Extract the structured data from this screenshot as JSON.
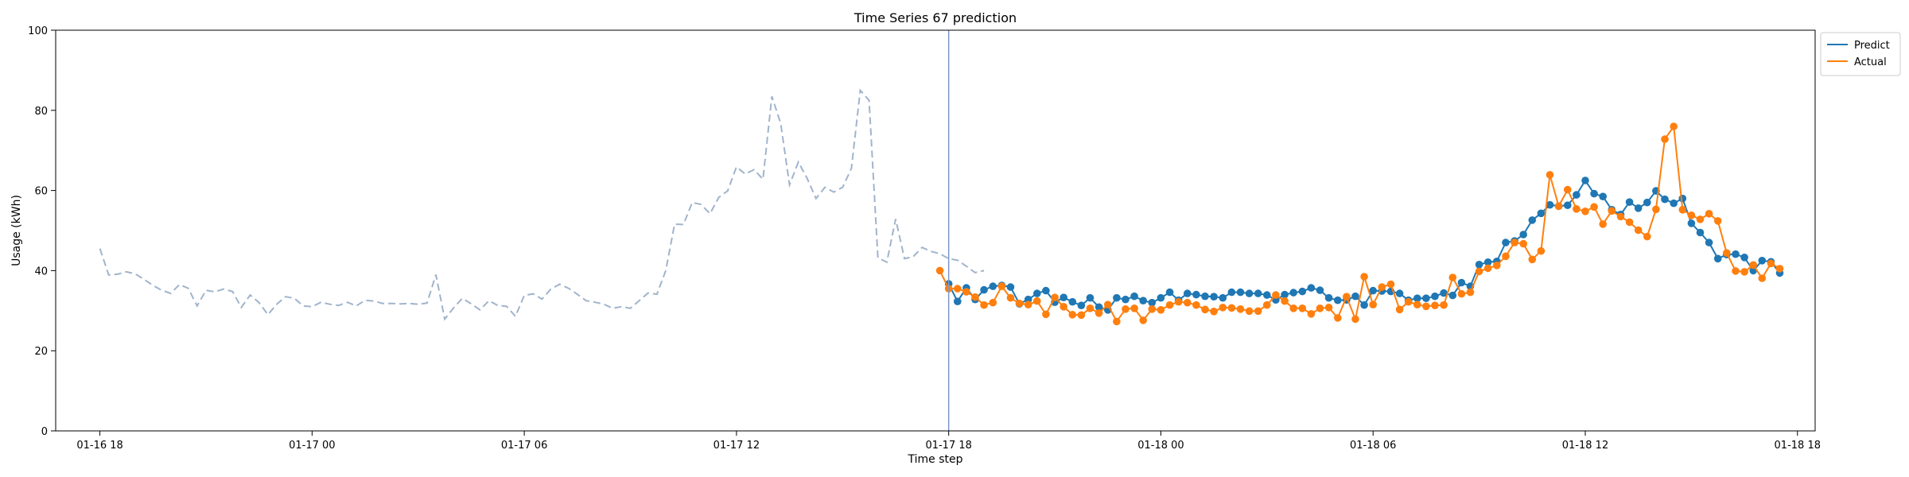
{
  "chart_data": {
    "type": "line",
    "title": "Time Series 67 prediction",
    "xlabel": "Time step",
    "ylabel": "Usage (kWh)",
    "ylim": [
      0,
      100
    ],
    "y_ticks": [
      0,
      20,
      40,
      60,
      80,
      100
    ],
    "x_ticks": [
      {
        "label": "01-16 18",
        "t": 0
      },
      {
        "label": "01-17 00",
        "t": 6
      },
      {
        "label": "01-17 06",
        "t": 12
      },
      {
        "label": "01-17 12",
        "t": 18
      },
      {
        "label": "01-17 18",
        "t": 24
      },
      {
        "label": "01-18 00",
        "t": 30
      },
      {
        "label": "01-18 06",
        "t": 36
      },
      {
        "label": "01-18 12",
        "t": 42
      },
      {
        "label": "01-18 18",
        "t": 48
      }
    ],
    "x_range_hours": [
      -1.25,
      48.5
    ],
    "step_hours": 0.25,
    "forecast_start_t": 24.0,
    "grid": false,
    "legend_position": "top-right",
    "series": [
      {
        "name": "",
        "style": "dashed",
        "color": "#a0b4cc",
        "start_t": 0,
        "values": [
          45.5,
          38.9,
          39.1,
          39.7,
          39.2,
          37.8,
          36.3,
          35.1,
          34.3,
          36.5,
          35.6,
          31.2,
          35.1,
          34.7,
          35.4,
          34.8,
          30.8,
          33.9,
          32.0,
          29.0,
          31.6,
          33.5,
          33.1,
          31.2,
          31.0,
          32.1,
          31.6,
          31.3,
          32.1,
          31.2,
          32.6,
          32.4,
          31.8,
          31.8,
          31.7,
          31.8,
          31.6,
          31.9,
          39.0,
          27.9,
          30.7,
          33.1,
          31.7,
          30.2,
          32.5,
          31.3,
          31.1,
          28.6,
          33.8,
          34.2,
          32.9,
          35.4,
          36.6,
          35.6,
          34.1,
          32.5,
          32.1,
          31.6,
          30.6,
          31.0,
          30.6,
          32.5,
          34.4,
          34.1,
          40.0,
          51.6,
          51.5,
          57.0,
          56.5,
          54.2,
          58.3,
          59.9,
          65.9,
          64.1,
          65.2,
          62.8,
          83.5,
          76.7,
          61.4,
          67.1,
          63.0,
          58.0,
          60.8,
          59.6,
          60.8,
          65.5,
          85.0,
          82.5,
          43.2,
          42.1,
          52.9,
          43.0,
          43.5,
          45.8,
          44.8,
          44.2,
          43.0,
          42.6,
          41.1,
          39.5,
          40.0
        ]
      },
      {
        "name": "Predict",
        "style": "solid-markers",
        "color": "#1f77b4",
        "start_t": 24.0,
        "values": [
          36.7,
          32.3,
          35.7,
          32.8,
          35.2,
          36.1,
          36.3,
          35.9,
          31.7,
          32.8,
          34.3,
          35.0,
          32.1,
          33.3,
          32.2,
          31.3,
          33.2,
          30.9,
          30.2,
          33.2,
          32.8,
          33.6,
          32.5,
          32.0,
          33.2,
          34.6,
          32.6,
          34.3,
          34.0,
          33.6,
          33.5,
          33.2,
          34.6,
          34.6,
          34.3,
          34.3,
          33.9,
          32.7,
          34.0,
          34.5,
          34.8,
          35.7,
          35.1,
          33.2,
          32.6,
          32.7,
          33.6,
          31.4,
          35.0,
          34.9,
          34.8,
          34.3,
          32.6,
          33.1,
          33.1,
          33.6,
          34.4,
          33.8,
          37.0,
          36.1,
          41.5,
          42.1,
          42.3,
          47.0,
          47.4,
          49.0,
          52.6,
          54.3,
          56.4,
          56.1,
          56.3,
          58.9,
          62.5,
          59.2,
          58.5,
          55.2,
          54.0,
          57.1,
          55.6,
          57.0,
          59.9,
          57.8,
          56.8,
          58.0,
          51.8,
          49.5,
          47.0,
          43.0,
          44.0,
          44.1,
          43.3,
          40.0,
          42.5,
          42.2,
          39.4
        ]
      },
      {
        "name": "Actual",
        "style": "solid-markers",
        "color": "#ff7f0e",
        "start_t": 23.75,
        "values": [
          40.0,
          35.5,
          35.5,
          34.7,
          33.4,
          31.4,
          32.0,
          36.1,
          33.2,
          31.8,
          31.5,
          32.4,
          29.1,
          33.3,
          31.0,
          29.0,
          28.9,
          30.6,
          29.4,
          31.5,
          27.3,
          30.4,
          30.6,
          27.6,
          30.4,
          30.2,
          31.4,
          32.2,
          32.0,
          31.4,
          30.3,
          29.8,
          30.8,
          30.7,
          30.4,
          29.9,
          29.9,
          31.4,
          33.9,
          32.4,
          30.6,
          30.6,
          29.2,
          30.6,
          30.8,
          28.2,
          33.5,
          27.9,
          38.5,
          31.5,
          35.9,
          36.6,
          30.3,
          32.2,
          31.5,
          31.1,
          31.3,
          31.4,
          38.3,
          34.2,
          34.6,
          39.8,
          40.6,
          41.3,
          43.6,
          47.0,
          46.7,
          42.8,
          44.9,
          63.9,
          56.1,
          60.2,
          55.4,
          54.8,
          55.9,
          51.6,
          54.9,
          53.5,
          52.1,
          50.1,
          48.5,
          55.3,
          72.8,
          76.0,
          55.2,
          53.8,
          52.8,
          54.2,
          52.4,
          44.4,
          39.9,
          39.7,
          41.4,
          38.1,
          41.8,
          40.5
        ]
      }
    ]
  }
}
